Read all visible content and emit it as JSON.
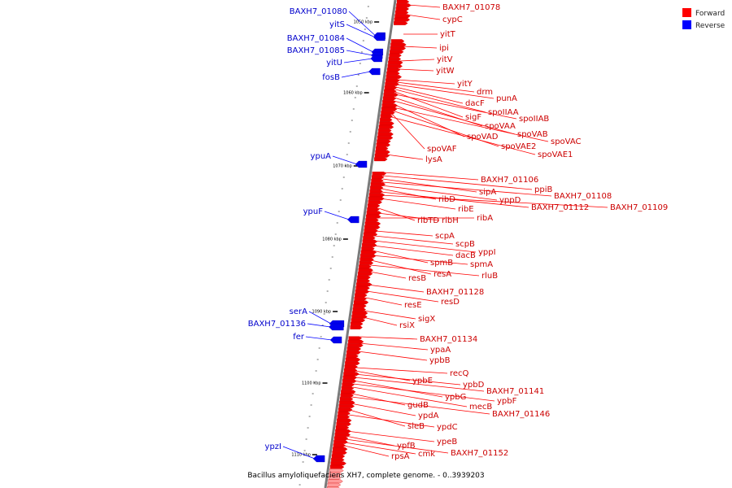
{
  "caption": "Bacillus amyloliquefaciens XH7, complete genome. - 0..3939203",
  "legend": [
    {
      "label": "Forward",
      "color": "#ff0000"
    },
    {
      "label": "Reverse",
      "color": "#0000ff"
    }
  ],
  "ticks": [
    "1050 kbp",
    "1060 kbp",
    "1070 kbp",
    "1080 kbp",
    "1090 kbp",
    "1100 kbp",
    "1110 kbp"
  ],
  "forward_genes": [
    "BAXH7_01078",
    "cypC",
    "yitT",
    "ipi",
    "yitV",
    "yitW",
    "yitY",
    "drm",
    "punA",
    "dacF",
    "spoIIAA",
    "sigF",
    "spoIIAB",
    "spoVAA",
    "spoVAB",
    "spoVAD",
    "spoVAC",
    "spoVAE2",
    "spoVAF",
    "spoVAE1",
    "lysA",
    "BAXH7_01106",
    "ppiB",
    "sipA",
    "BAXH7_01108",
    "yppD",
    "ribD",
    "BAXH7_01112",
    "BAXH7_01109",
    "ribE",
    "ribTD",
    "ribH",
    "ribA",
    "scpA",
    "scpB",
    "yppI",
    "dacB",
    "spmB",
    "spmA",
    "resA",
    "rluB",
    "resB",
    "BAXH7_01128",
    "resD",
    "resE",
    "sigX",
    "rsiX",
    "BAXH7_01134",
    "ypaA",
    "ypbB",
    "recQ",
    "ypbE",
    "ypbD",
    "BAXH7_01141",
    "ypbG",
    "ypbF",
    "mecB",
    "gudB",
    "BAXH7_01146",
    "ypdA",
    "sleB",
    "ypdC",
    "ypeB",
    "ypfB",
    "BAXH7_01152",
    "cmk",
    "rpsA"
  ],
  "reverse_genes": [
    "BAXH7_01080",
    "yitS",
    "BAXH7_01084",
    "BAXH7_01085",
    "yitU",
    "fosB",
    "ypuA",
    "ypuF",
    "serA",
    "BAXH7_01136",
    "fer",
    "ypzI"
  ]
}
